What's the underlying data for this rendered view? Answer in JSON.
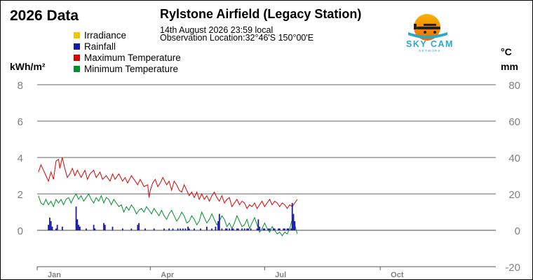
{
  "header": {
    "year_title": "2026 Data",
    "title": "Rylstone Airfield (Legacy Station)",
    "timestamp": "14th August 2026  23:59 local",
    "location": "Observation Location:32°46'S 150°00'E"
  },
  "logo": {
    "text": "SKY CAM",
    "subtext": "NETWORK"
  },
  "legend": [
    {
      "label": "Irradiance",
      "color": "#f5c400"
    },
    {
      "label": "Rainfall",
      "color": "#1a1aa8"
    },
    {
      "label": "Maximum Temperature",
      "color": "#dd0000"
    },
    {
      "label": "Minimum Temperature",
      "color": "#00902a"
    }
  ],
  "axes": {
    "left_unit": "kWh/m²",
    "right_unit_temp": "°C",
    "right_unit_rain": "mm"
  },
  "chart_data": {
    "type": "line",
    "title": "Rylstone Airfield (Legacy Station)",
    "xlabel": "",
    "ylabel_left": "kWh/m²",
    "ylabel_right": "°C / mm",
    "y_left_ticks": [
      0,
      2,
      4,
      6,
      8
    ],
    "y_right_ticks": [
      -20,
      0,
      20,
      40,
      60,
      80
    ],
    "ylim_left": [
      -2,
      8
    ],
    "ylim_right": [
      -20,
      80
    ],
    "xlim_days": [
      0,
      365
    ],
    "x_ticks": [
      {
        "label": "Jan",
        "day": 0
      },
      {
        "label": "Apr",
        "day": 90
      },
      {
        "label": "Jul",
        "day": 181
      },
      {
        "label": "Oct",
        "day": 273
      }
    ],
    "grid": true,
    "legend_position": "top-left",
    "series": [
      {
        "name": "Maximum Temperature",
        "axis": "right",
        "color": "#dd0000",
        "points": [
          [
            1,
            32
          ],
          [
            3,
            36
          ],
          [
            5,
            33
          ],
          [
            7,
            30
          ],
          [
            9,
            27
          ],
          [
            11,
            32
          ],
          [
            13,
            28
          ],
          [
            15,
            38
          ],
          [
            17,
            39
          ],
          [
            18,
            34
          ],
          [
            20,
            40
          ],
          [
            22,
            34
          ],
          [
            24,
            29
          ],
          [
            26,
            31
          ],
          [
            28,
            34
          ],
          [
            30,
            30
          ],
          [
            32,
            33
          ],
          [
            35,
            29
          ],
          [
            38,
            33
          ],
          [
            40,
            28
          ],
          [
            42,
            31
          ],
          [
            45,
            33
          ],
          [
            47,
            29
          ],
          [
            50,
            32
          ],
          [
            52,
            28
          ],
          [
            55,
            30
          ],
          [
            58,
            27
          ],
          [
            60,
            31
          ],
          [
            62,
            28
          ],
          [
            65,
            31
          ],
          [
            68,
            27
          ],
          [
            70,
            29
          ],
          [
            72,
            26
          ],
          [
            75,
            30
          ],
          [
            78,
            27
          ],
          [
            80,
            25
          ],
          [
            82,
            28
          ],
          [
            85,
            24
          ],
          [
            88,
            25
          ],
          [
            89,
            18
          ],
          [
            90,
            22
          ],
          [
            92,
            26
          ],
          [
            94,
            28
          ],
          [
            96,
            24
          ],
          [
            98,
            26
          ],
          [
            100,
            29
          ],
          [
            103,
            25
          ],
          [
            105,
            27
          ],
          [
            107,
            22
          ],
          [
            109,
            27
          ],
          [
            111,
            25
          ],
          [
            113,
            22
          ],
          [
            115,
            21
          ],
          [
            117,
            25
          ],
          [
            119,
            22
          ],
          [
            121,
            19
          ],
          [
            123,
            21
          ],
          [
            125,
            18
          ],
          [
            127,
            21
          ],
          [
            129,
            17
          ],
          [
            131,
            20
          ],
          [
            133,
            17
          ],
          [
            135,
            19
          ],
          [
            137,
            16
          ],
          [
            139,
            19
          ],
          [
            141,
            21
          ],
          [
            143,
            18
          ],
          [
            145,
            16
          ],
          [
            147,
            19
          ],
          [
            149,
            15
          ],
          [
            151,
            17
          ],
          [
            153,
            18
          ],
          [
            155,
            13
          ],
          [
            157,
            15
          ],
          [
            159,
            17
          ],
          [
            161,
            14
          ],
          [
            163,
            16
          ],
          [
            165,
            15
          ],
          [
            167,
            12
          ],
          [
            169,
            14
          ],
          [
            171,
            13
          ],
          [
            173,
            15
          ],
          [
            175,
            12
          ],
          [
            177,
            14
          ],
          [
            179,
            16
          ],
          [
            181,
            13
          ],
          [
            183,
            15
          ],
          [
            185,
            17
          ],
          [
            187,
            14
          ],
          [
            189,
            16
          ],
          [
            191,
            15
          ],
          [
            193,
            13
          ],
          [
            195,
            15
          ],
          [
            197,
            14
          ],
          [
            199,
            12
          ],
          [
            201,
            14
          ],
          [
            203,
            13
          ],
          [
            205,
            15
          ],
          [
            207,
            17
          ]
        ]
      },
      {
        "name": "Minimum Temperature",
        "axis": "right",
        "color": "#00902a",
        "points": [
          [
            1,
            19
          ],
          [
            3,
            15
          ],
          [
            5,
            14
          ],
          [
            7,
            17
          ],
          [
            9,
            14
          ],
          [
            11,
            16
          ],
          [
            13,
            13
          ],
          [
            15,
            17
          ],
          [
            17,
            15
          ],
          [
            19,
            17
          ],
          [
            21,
            14
          ],
          [
            23,
            17
          ],
          [
            25,
            18
          ],
          [
            27,
            15
          ],
          [
            29,
            18
          ],
          [
            31,
            20
          ],
          [
            33,
            17
          ],
          [
            35,
            19
          ],
          [
            37,
            16
          ],
          [
            39,
            18
          ],
          [
            41,
            20
          ],
          [
            43,
            17
          ],
          [
            45,
            15
          ],
          [
            47,
            18
          ],
          [
            49,
            16
          ],
          [
            51,
            19
          ],
          [
            53,
            15
          ],
          [
            55,
            18
          ],
          [
            57,
            17
          ],
          [
            59,
            14
          ],
          [
            61,
            17
          ],
          [
            63,
            15
          ],
          [
            65,
            13
          ],
          [
            67,
            14
          ],
          [
            69,
            10
          ],
          [
            71,
            13
          ],
          [
            73,
            11
          ],
          [
            75,
            14
          ],
          [
            77,
            12
          ],
          [
            79,
            9
          ],
          [
            81,
            11
          ],
          [
            83,
            12
          ],
          [
            85,
            10
          ],
          [
            87,
            13
          ],
          [
            89,
            11
          ],
          [
            91,
            9
          ],
          [
            93,
            12
          ],
          [
            95,
            10
          ],
          [
            97,
            8
          ],
          [
            99,
            11
          ],
          [
            101,
            8
          ],
          [
            103,
            6
          ],
          [
            105,
            9
          ],
          [
            107,
            11
          ],
          [
            109,
            8
          ],
          [
            111,
            5
          ],
          [
            113,
            7
          ],
          [
            115,
            10
          ],
          [
            117,
            8
          ],
          [
            119,
            4
          ],
          [
            121,
            5
          ],
          [
            123,
            8
          ],
          [
            125,
            6
          ],
          [
            127,
            3
          ],
          [
            129,
            5
          ],
          [
            131,
            10
          ],
          [
            133,
            7
          ],
          [
            135,
            4
          ],
          [
            137,
            6
          ],
          [
            139,
            9
          ],
          [
            141,
            6
          ],
          [
            143,
            3
          ],
          [
            145,
            5
          ],
          [
            147,
            8
          ],
          [
            149,
            6
          ],
          [
            151,
            2
          ],
          [
            153,
            4
          ],
          [
            155,
            1
          ],
          [
            157,
            4
          ],
          [
            159,
            8
          ],
          [
            161,
            5
          ],
          [
            163,
            2
          ],
          [
            165,
            3
          ],
          [
            167,
            6
          ],
          [
            169,
            1
          ],
          [
            171,
            4
          ],
          [
            173,
            7
          ],
          [
            175,
            3
          ],
          [
            177,
            -1
          ],
          [
            179,
            1
          ],
          [
            181,
            4
          ],
          [
            183,
            1
          ],
          [
            185,
            -1
          ],
          [
            187,
            2
          ],
          [
            189,
            0
          ],
          [
            191,
            -2
          ],
          [
            193,
            -1
          ],
          [
            195,
            -3
          ],
          [
            197,
            -1
          ],
          [
            199,
            -2
          ],
          [
            201,
            1
          ],
          [
            203,
            6
          ],
          [
            205,
            3
          ],
          [
            207,
            -2
          ]
        ]
      },
      {
        "name": "Rainfall",
        "axis": "right",
        "color": "#1a1aa8",
        "type": "bar",
        "points": [
          [
            9,
            3
          ],
          [
            10,
            7
          ],
          [
            11,
            5
          ],
          [
            12,
            2
          ],
          [
            15,
            1
          ],
          [
            16,
            3
          ],
          [
            20,
            2
          ],
          [
            31,
            13
          ],
          [
            32,
            6
          ],
          [
            33,
            3
          ],
          [
            34,
            2
          ],
          [
            39,
            1
          ],
          [
            45,
            3
          ],
          [
            46,
            1
          ],
          [
            53,
            4
          ],
          [
            54,
            3
          ],
          [
            60,
            2
          ],
          [
            68,
            1
          ],
          [
            75,
            1
          ],
          [
            80,
            3
          ],
          [
            81,
            4
          ],
          [
            86,
            1
          ],
          [
            93,
            1
          ],
          [
            101,
            1
          ],
          [
            105,
            1
          ],
          [
            108,
            1
          ],
          [
            112,
            1
          ],
          [
            114,
            1
          ],
          [
            116,
            1
          ],
          [
            118,
            1
          ],
          [
            120,
            2
          ],
          [
            121,
            1
          ],
          [
            125,
            1
          ],
          [
            130,
            1
          ],
          [
            135,
            2
          ],
          [
            139,
            1
          ],
          [
            142,
            2
          ],
          [
            144,
            5
          ],
          [
            145,
            9
          ],
          [
            147,
            1
          ],
          [
            150,
            1
          ],
          [
            151,
            1
          ],
          [
            153,
            1
          ],
          [
            155,
            1
          ],
          [
            156,
            1
          ],
          [
            159,
            1
          ],
          [
            160,
            1
          ],
          [
            163,
            1
          ],
          [
            165,
            1
          ],
          [
            167,
            1
          ],
          [
            168,
            1
          ],
          [
            170,
            1
          ],
          [
            175,
            1
          ],
          [
            176,
            6
          ],
          [
            177,
            2
          ],
          [
            180,
            1
          ],
          [
            181,
            1
          ],
          [
            184,
            1
          ],
          [
            185,
            1
          ],
          [
            188,
            1
          ],
          [
            189,
            1
          ],
          [
            192,
            1
          ],
          [
            193,
            1
          ],
          [
            196,
            1
          ],
          [
            197,
            1
          ],
          [
            199,
            1
          ],
          [
            200,
            1
          ],
          [
            202,
            1
          ],
          [
            203,
            15
          ],
          [
            204,
            9
          ],
          [
            205,
            5
          ]
        ]
      }
    ]
  }
}
